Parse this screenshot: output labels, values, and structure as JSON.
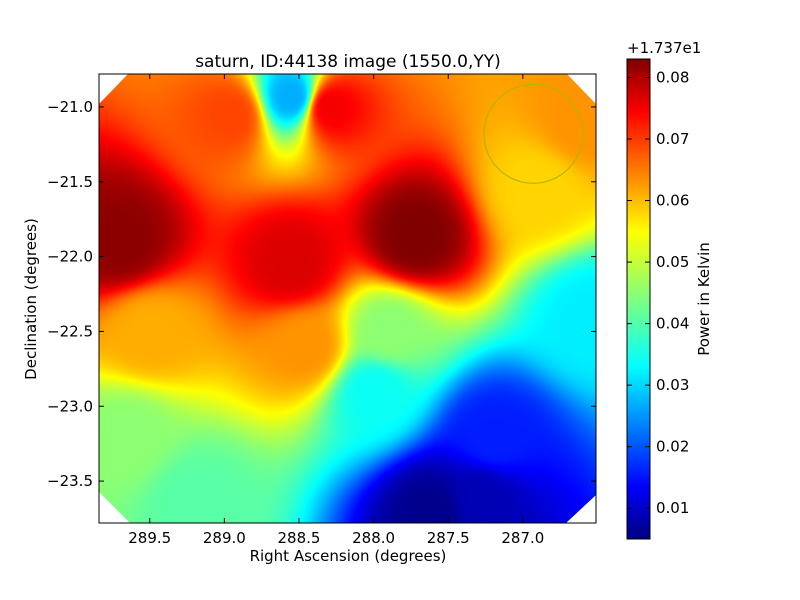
{
  "chart_data": {
    "type": "heatmap",
    "title": "saturn, ID:44138 image (1550.0,YY)",
    "xlabel": "Right Ascension (degrees)",
    "ylabel": "Declination (degrees)",
    "xlim": [
      289.84,
      286.51
    ],
    "ylim": [
      -23.78,
      -20.78
    ],
    "x_ticks": [
      289.5,
      289.0,
      288.5,
      288.0,
      287.5,
      287.0
    ],
    "x_tick_labels": [
      "289.5",
      "289.0",
      "288.5",
      "288.0",
      "287.5",
      "287.0"
    ],
    "y_ticks": [
      -21.0,
      -21.5,
      -22.0,
      -22.5,
      -23.0,
      -23.5
    ],
    "y_tick_labels": [
      "−21.0",
      "−21.5",
      "−22.0",
      "−22.5",
      "−23.0",
      "−23.5"
    ],
    "colorbar": {
      "label": "Power in Kelvin",
      "offset_label": "+1.737e1",
      "range": [
        0.005,
        0.083
      ],
      "ticks": [
        0.01,
        0.02,
        0.03,
        0.04,
        0.05,
        0.06,
        0.07,
        0.08
      ],
      "tick_labels": [
        "0.01",
        "0.02",
        "0.03",
        "0.04",
        "0.05",
        "0.06",
        "0.07",
        "0.08"
      ],
      "colormap": "jet"
    },
    "beam_circle": {
      "center_ra": 286.93,
      "center_dec": -21.18,
      "radius_deg": 0.33,
      "color": "#b5b400"
    },
    "features": [
      {
        "ra": 289.7,
        "dec": -21.9,
        "value": 0.082
      },
      {
        "ra": 287.72,
        "dec": -21.87,
        "value": 0.083
      },
      {
        "ra": 288.95,
        "dec": -21.05,
        "value": 0.068
      },
      {
        "ra": 288.3,
        "dec": -21.0,
        "value": 0.074
      },
      {
        "ra": 288.55,
        "dec": -20.93,
        "value": 0.028
      },
      {
        "ra": 288.55,
        "dec": -22.05,
        "value": 0.076
      },
      {
        "ra": 288.45,
        "dec": -22.6,
        "value": 0.062
      },
      {
        "ra": 289.5,
        "dec": -22.5,
        "value": 0.06
      },
      {
        "ra": 289.65,
        "dec": -23.2,
        "value": 0.045
      },
      {
        "ra": 288.0,
        "dec": -22.9,
        "value": 0.035
      },
      {
        "ra": 286.55,
        "dec": -22.4,
        "value": 0.033
      },
      {
        "ra": 287.3,
        "dec": -23.62,
        "value": 0.009
      },
      {
        "ra": 287.6,
        "dec": -23.7,
        "value": 0.006
      },
      {
        "ra": 287.2,
        "dec": -23.2,
        "value": 0.017
      },
      {
        "ra": 289.2,
        "dec": -23.62,
        "value": 0.041
      },
      {
        "ra": 287.9,
        "dec": -22.5,
        "value": 0.045
      },
      {
        "ra": 286.6,
        "dec": -21.1,
        "value": 0.062
      },
      {
        "ra": 286.9,
        "dec": -21.55,
        "value": 0.057
      }
    ]
  }
}
